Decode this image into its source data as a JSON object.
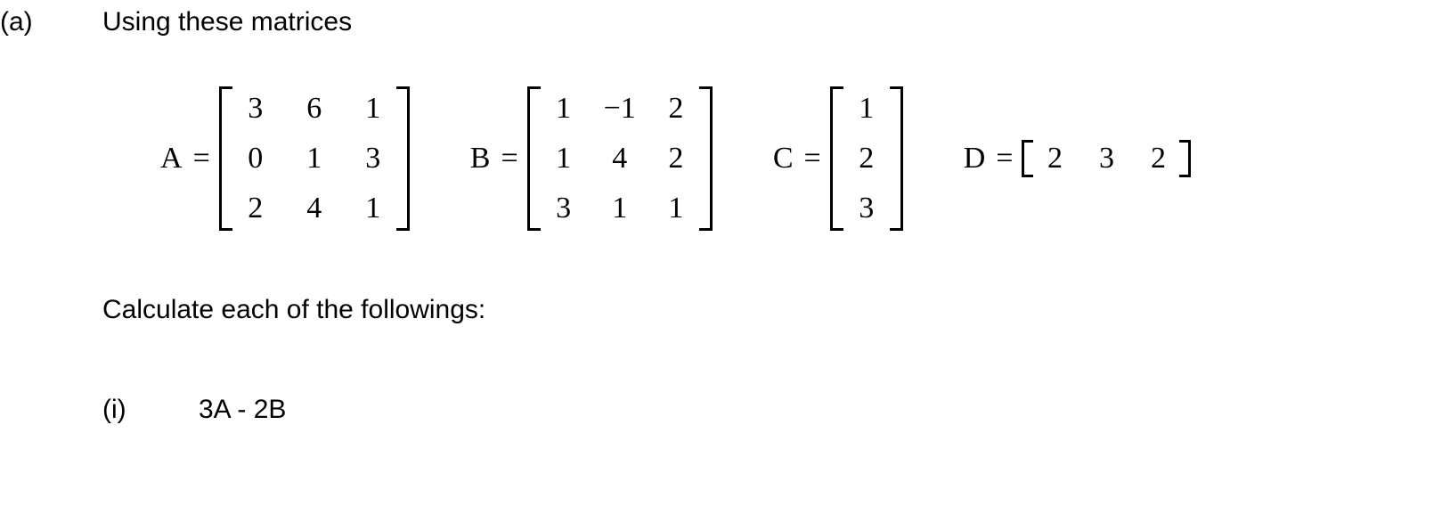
{
  "part_label": "(a)",
  "intro_text": "Using these matrices",
  "matrices": {
    "A": {
      "name": "A",
      "rows": 3,
      "cols": 3,
      "col_gap": 36,
      "values": [
        "3",
        "6",
        "1",
        "0",
        "1",
        "3",
        "2",
        "4",
        "1"
      ]
    },
    "B": {
      "name": "B",
      "rows": 3,
      "cols": 3,
      "col_gap": 30,
      "values": [
        "1",
        "−1",
        "2",
        "1",
        "4",
        "2",
        "3",
        "1",
        "1"
      ]
    },
    "C": {
      "name": "C",
      "rows": 3,
      "cols": 1,
      "col_gap": 0,
      "values": [
        "1",
        "2",
        "3"
      ]
    },
    "D": {
      "name": "D",
      "rows": 1,
      "cols": 3,
      "col_gap": 28,
      "values": [
        "2",
        "3",
        "2"
      ]
    }
  },
  "calc_text": "Calculate each of the followings:",
  "sub": {
    "label": "(i)",
    "expr": "3A - 2B"
  }
}
